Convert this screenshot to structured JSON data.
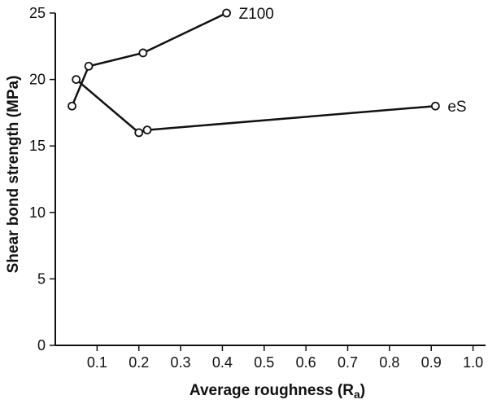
{
  "chart_data": {
    "type": "line",
    "title": "",
    "xlabel": "Average roughness (R",
    "xlabel_subscript": "a",
    "xlabel_close": ")",
    "ylabel": "Shear bond strength (MPa)",
    "xlim": [
      0,
      1.03
    ],
    "ylim": [
      0,
      25
    ],
    "x_ticks": [
      0.1,
      0.2,
      0.3,
      0.4,
      0.5,
      0.6,
      0.7,
      0.8,
      0.9,
      1.0
    ],
    "x_tick_labels": [
      "0.1",
      "0.2",
      "0.3",
      "0.4",
      "0.5",
      "0.6",
      "0.7",
      "0.8",
      "0.9",
      "1.0"
    ],
    "y_ticks": [
      0,
      5,
      10,
      15,
      20,
      25
    ],
    "y_tick_labels": [
      "0",
      "5",
      "10",
      "15",
      "20",
      "25"
    ],
    "grid": false,
    "series": [
      {
        "name": "Z100",
        "x": [
          0.04,
          0.08,
          0.21,
          0.41
        ],
        "y": [
          18,
          21,
          22,
          25
        ]
      },
      {
        "name": "eS",
        "x": [
          0.05,
          0.2,
          0.22,
          0.91
        ],
        "y": [
          20,
          16,
          16.2,
          18
        ]
      }
    ],
    "line_color": "#111111",
    "marker_fill": "#ffffff"
  }
}
